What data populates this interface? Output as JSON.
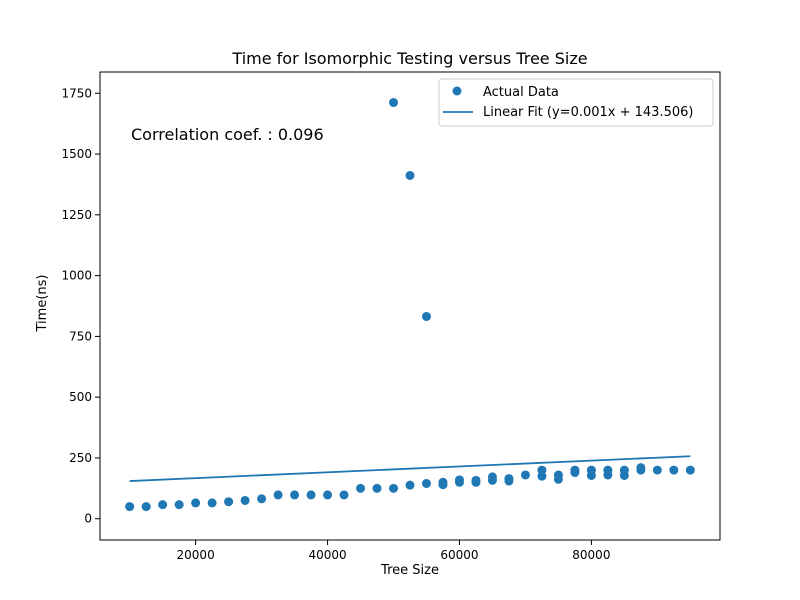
{
  "chart_data": {
    "type": "scatter",
    "title": "Time for Isomorphic Testing versus Tree Size",
    "xlabel": "Tree Size",
    "ylabel": "Time(ns)",
    "xlim": [
      5500,
      99500
    ],
    "ylim": [
      -87.5,
      1837.5
    ],
    "xticks": [
      20000,
      40000,
      60000,
      80000
    ],
    "yticks": [
      0,
      250,
      500,
      750,
      1000,
      1250,
      1500,
      1750
    ],
    "legend_position": "upper-right",
    "annotation": "Correlation coef. : 0.096",
    "point_color": "#1f77b4",
    "series": [
      {
        "name": "Actual Data",
        "kind": "scatter",
        "points": [
          [
            10000,
            50
          ],
          [
            12500,
            50
          ],
          [
            15000,
            58
          ],
          [
            17500,
            58
          ],
          [
            20000,
            65
          ],
          [
            22500,
            65
          ],
          [
            25000,
            70
          ],
          [
            27500,
            75
          ],
          [
            30000,
            82
          ],
          [
            32500,
            98
          ],
          [
            35000,
            98
          ],
          [
            37500,
            98
          ],
          [
            40000,
            98
          ],
          [
            42500,
            98
          ],
          [
            45000,
            125
          ],
          [
            47500,
            125
          ],
          [
            50000,
            125
          ],
          [
            50000,
            1712
          ],
          [
            52500,
            138
          ],
          [
            52500,
            1412
          ],
          [
            55000,
            145
          ],
          [
            55000,
            832
          ],
          [
            57500,
            140
          ],
          [
            57500,
            150
          ],
          [
            60000,
            150
          ],
          [
            60000,
            160
          ],
          [
            62500,
            150
          ],
          [
            62500,
            158
          ],
          [
            65000,
            158
          ],
          [
            65000,
            172
          ],
          [
            67500,
            155
          ],
          [
            67500,
            165
          ],
          [
            70000,
            180
          ],
          [
            72500,
            175
          ],
          [
            72500,
            200
          ],
          [
            75000,
            162
          ],
          [
            75000,
            180
          ],
          [
            77500,
            190
          ],
          [
            77500,
            200
          ],
          [
            80000,
            178
          ],
          [
            80000,
            200
          ],
          [
            82500,
            180
          ],
          [
            82500,
            200
          ],
          [
            85000,
            178
          ],
          [
            85000,
            200
          ],
          [
            87500,
            200
          ],
          [
            87500,
            210
          ],
          [
            90000,
            200
          ],
          [
            92500,
            200
          ],
          [
            95000,
            200
          ]
        ]
      },
      {
        "name": "Linear Fit (y=0.001x + 143.506)",
        "kind": "line",
        "points": [
          [
            10000,
            155
          ],
          [
            95000,
            257
          ]
        ]
      }
    ]
  }
}
